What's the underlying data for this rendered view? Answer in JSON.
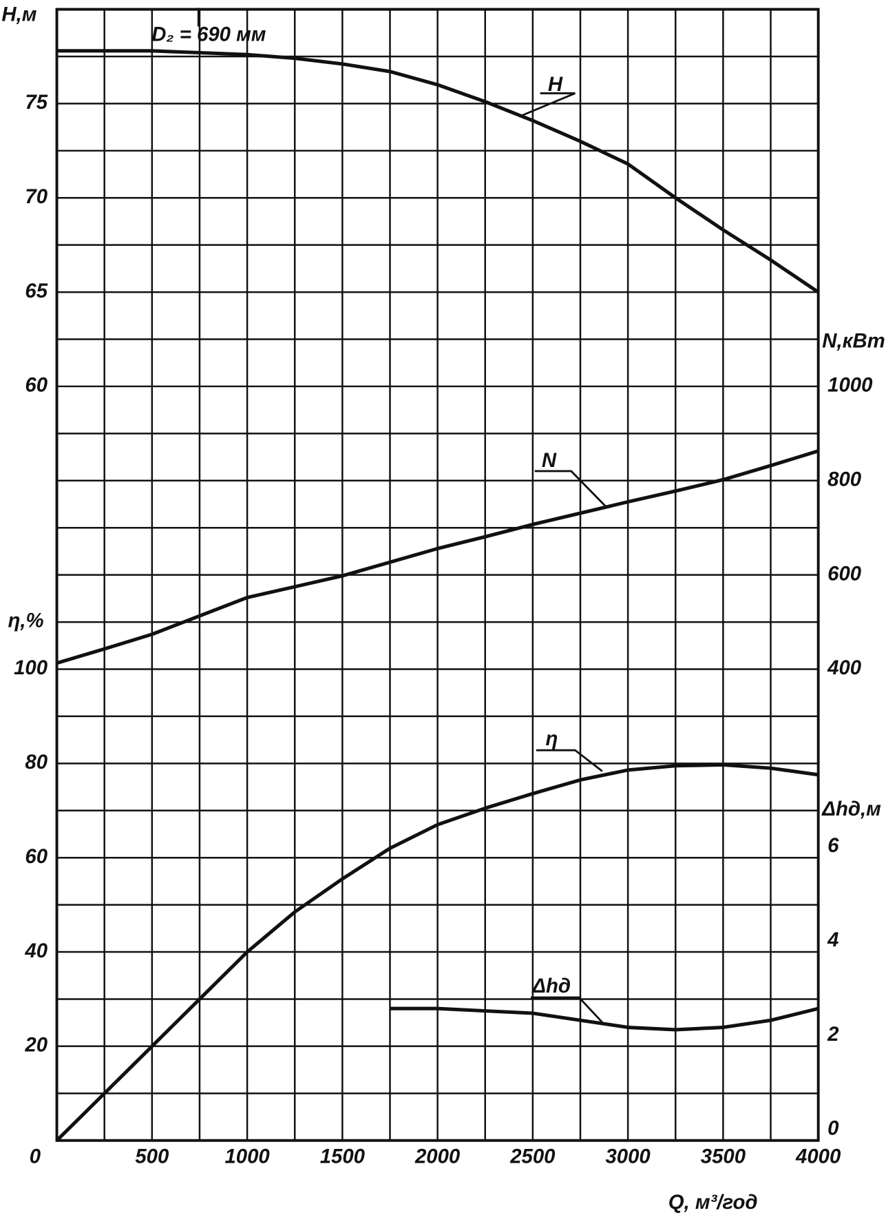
{
  "chart_data": {
    "type": "line",
    "title": "D₂ = 690 мм",
    "x_label": "Q, м³/год",
    "y_label": "H,м",
    "y2_label": "N,кВт",
    "y3_label": "η,%",
    "y4_label": "Δhд,м",
    "x": [
      0,
      250,
      500,
      750,
      1000,
      1250,
      1500,
      1750,
      2000,
      2250,
      2500,
      2750,
      3000,
      3250,
      3500,
      3750,
      4000
    ],
    "xlim": [
      0,
      4000
    ],
    "xticks": [
      0,
      500,
      1000,
      1500,
      2000,
      2500,
      3000,
      3500,
      4000
    ],
    "ylim": [
      20,
      80
    ],
    "yticks": [
      60,
      65,
      70,
      75
    ],
    "ygrid": [
      20,
      22.5,
      25,
      27.5,
      30,
      32.5,
      35,
      37.5,
      40,
      42.5,
      45,
      47.5,
      50,
      52.5,
      55,
      57.5,
      60,
      62.5,
      65,
      67.5,
      70,
      72.5,
      75,
      77.5,
      80
    ],
    "y2lim": [
      -600,
      1800
    ],
    "y2ticks": [
      400,
      600,
      800,
      1000
    ],
    "y3lim": [
      0,
      240
    ],
    "y3ticks": [
      20,
      40,
      60,
      80,
      100
    ],
    "y4lim": [
      0,
      24
    ],
    "y4ticks": [
      0,
      2,
      4,
      6
    ],
    "grid": true,
    "series": [
      {
        "name": "H",
        "color": "#111111",
        "axis": "y",
        "values": [
          77.8,
          77.8,
          77.8,
          77.7,
          77.6,
          77.4,
          77.1,
          76.7,
          76.0,
          75.1,
          74.1,
          73.0,
          71.8,
          70.0,
          68.3,
          66.7,
          65.0
        ]
      },
      {
        "name": "N",
        "color": "#111111",
        "axis": "y2",
        "values": [
          413,
          443,
          474,
          513,
          552,
          575,
          598,
          627,
          656,
          681,
          707,
          731,
          755,
          778,
          802,
          832,
          863
        ]
      },
      {
        "name": "η",
        "color": "#111111",
        "axis": "y3",
        "values": [
          0,
          10,
          20,
          30,
          40,
          48.5,
          55.5,
          62,
          67,
          70.5,
          73.6,
          76.5,
          78.6,
          79.5,
          79.7,
          79,
          77.6
        ]
      },
      {
        "name": "Δhд",
        "color": "#111111",
        "axis": "y4",
        "values": [
          null,
          null,
          null,
          null,
          null,
          null,
          null,
          2.8,
          2.8,
          2.75,
          2.7,
          2.55,
          2.4,
          2.35,
          2.4,
          2.55,
          2.8
        ]
      }
    ]
  }
}
